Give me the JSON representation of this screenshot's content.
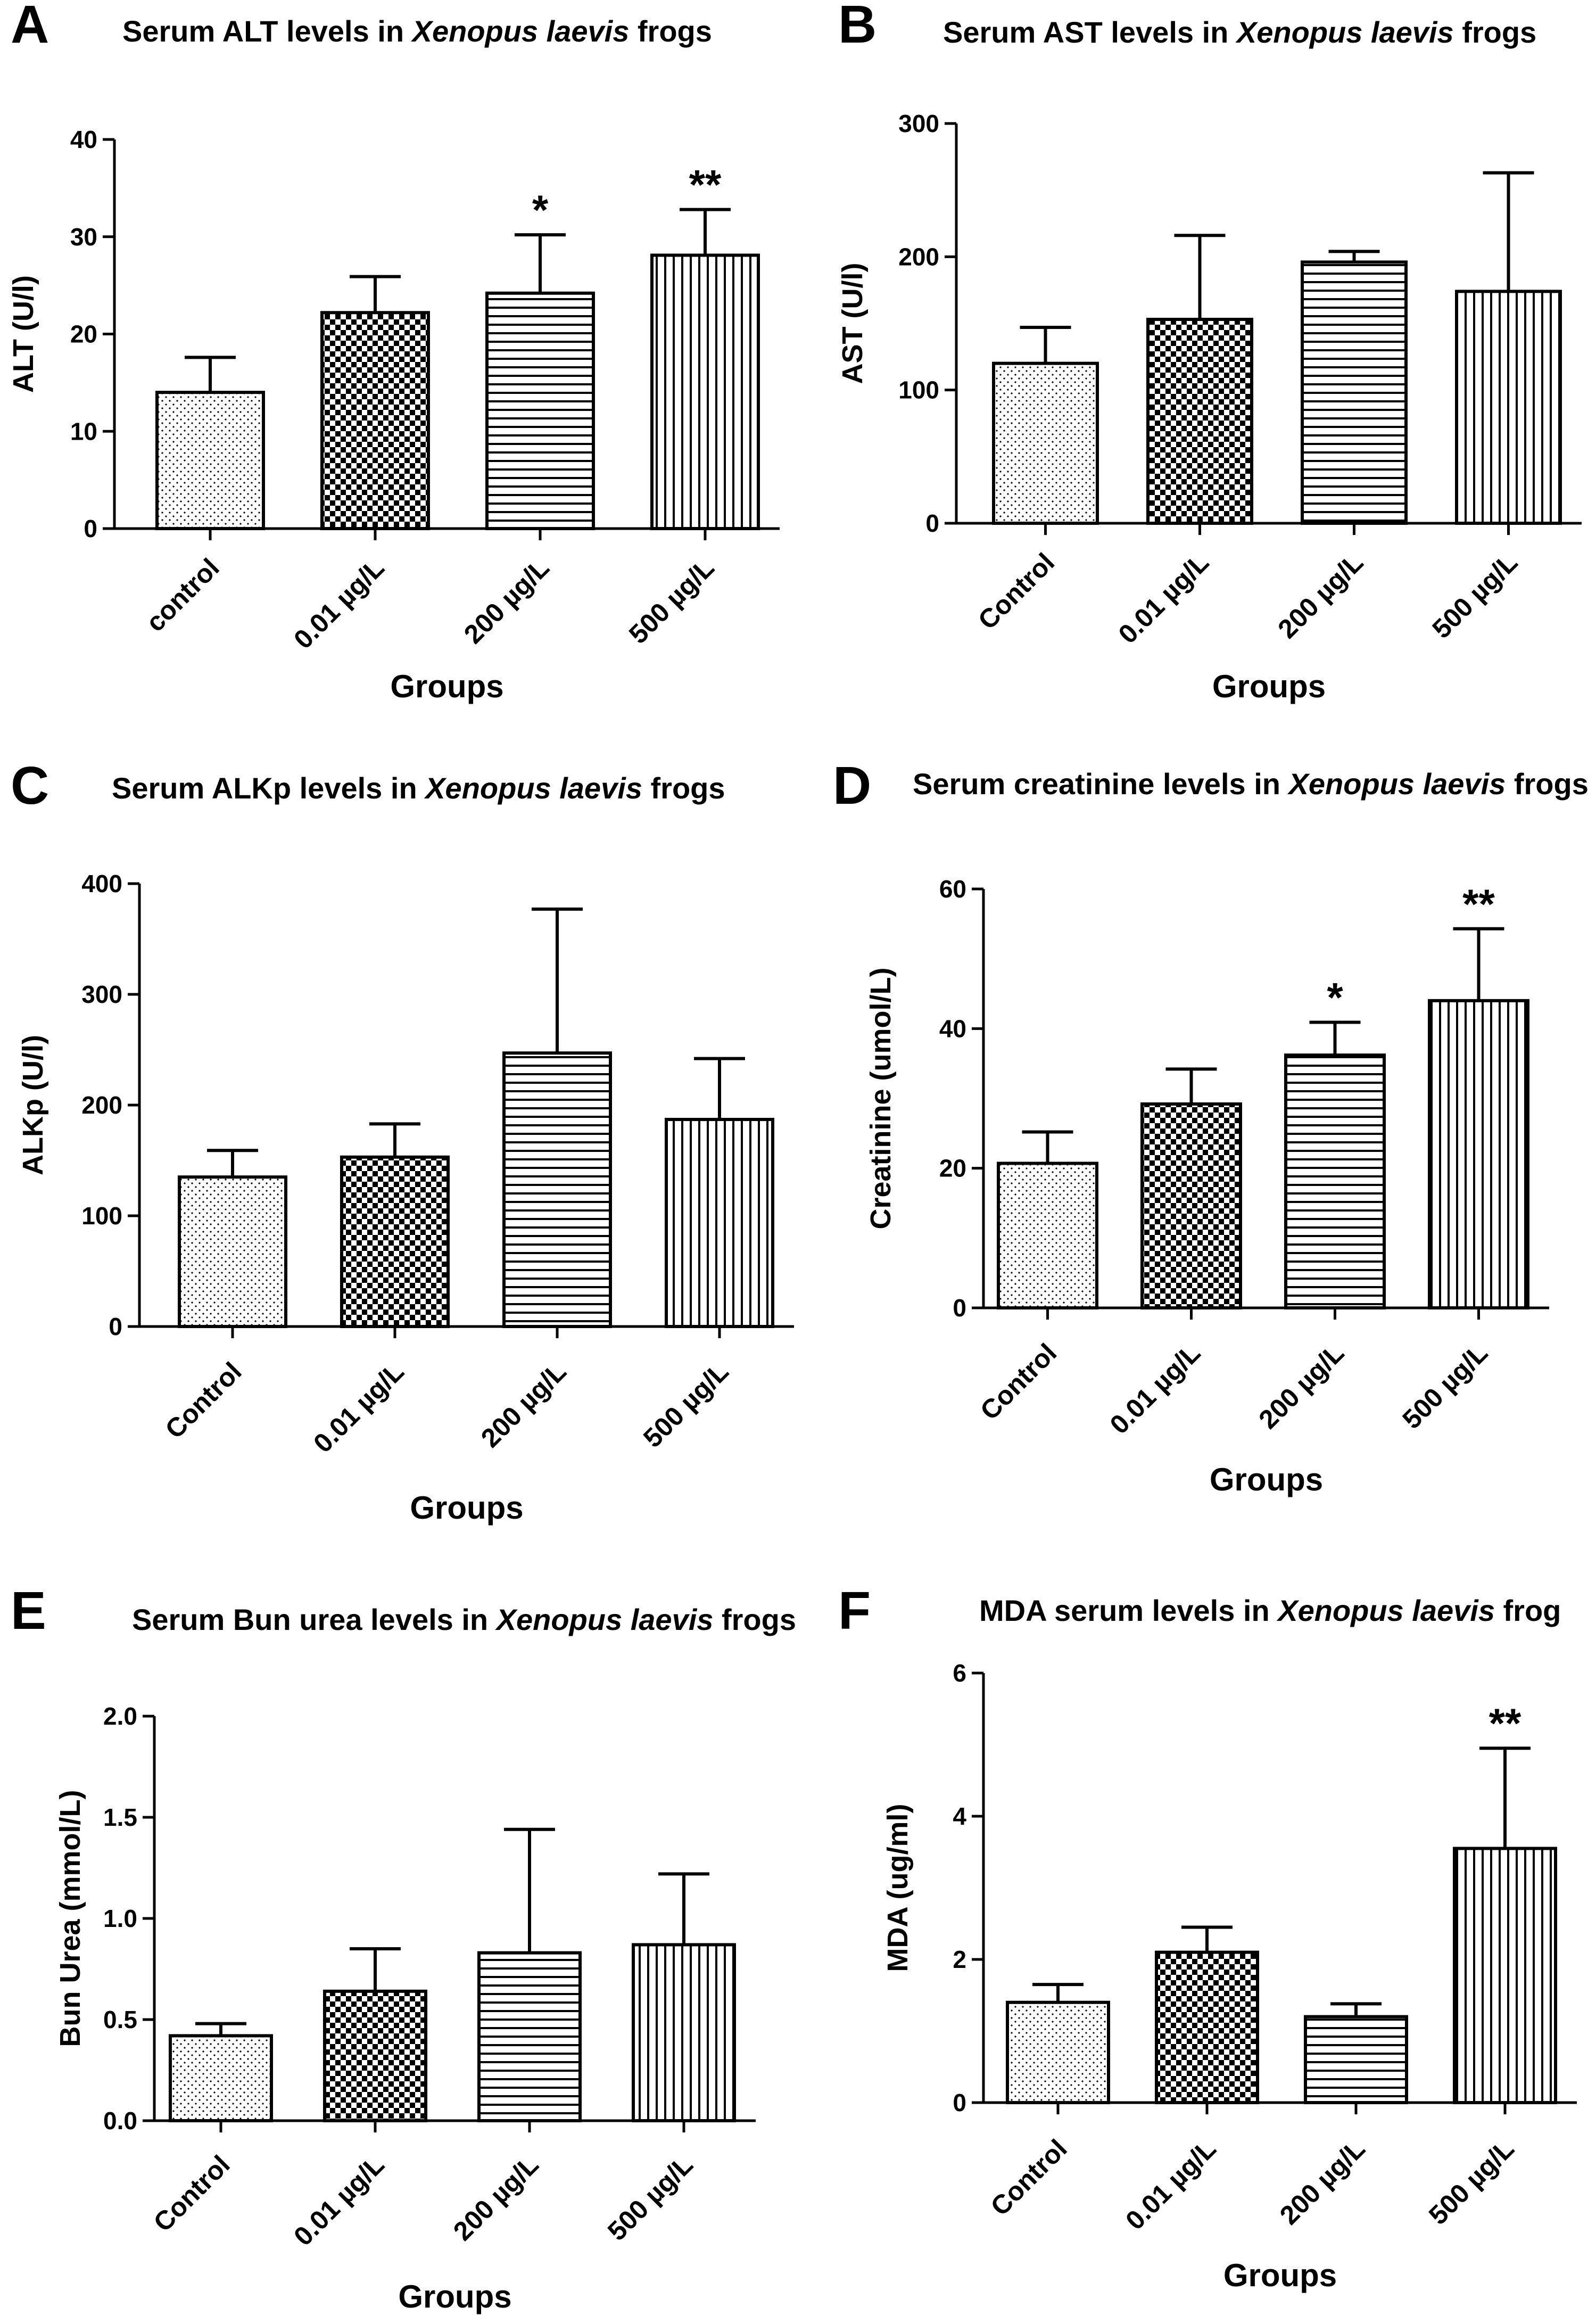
{
  "chart_data": [
    {
      "type": "bar",
      "panel": "A",
      "title_prefix": "Serum ALT levels in ",
      "title_species": "Xenopus laevis",
      "title_suffix": " frogs",
      "ylabel": "ALT (U/l)",
      "xlabel": "Groups",
      "ylim": [
        0,
        40
      ],
      "yticks": [
        0,
        10,
        20,
        30,
        40
      ],
      "ytick_labels": [
        "0",
        "10",
        "20",
        "30",
        "40"
      ],
      "categories": [
        "control",
        "0.01 µg/L",
        "200 µg/L",
        "500 µg/L"
      ],
      "values": [
        14,
        22.2,
        24.2,
        28.1
      ],
      "error_upper": [
        3.6,
        3.7,
        6,
        4.7
      ],
      "significance": [
        "",
        "",
        "*",
        "**"
      ]
    },
    {
      "type": "bar",
      "panel": "B",
      "title_prefix": "Serum AST levels in ",
      "title_species": "Xenopus laevis",
      "title_suffix": " frogs",
      "ylabel": "AST (U/l)",
      "xlabel": "Groups",
      "ylim": [
        0,
        300
      ],
      "yticks": [
        0,
        100,
        200,
        300
      ],
      "ytick_labels": [
        "0",
        "100",
        "200",
        "300"
      ],
      "categories": [
        "Control",
        "0.01 µg/L",
        "200 µg/L",
        "500 µg/L"
      ],
      "values": [
        120,
        153,
        196,
        174
      ],
      "error_upper": [
        27,
        63,
        8,
        89
      ],
      "significance": [
        "",
        "",
        "",
        ""
      ]
    },
    {
      "type": "bar",
      "panel": "C",
      "title_prefix": "Serum ALKp levels in  ",
      "title_species": "Xenopus laevis",
      "title_suffix": " frogs",
      "ylabel": "ALKp (U/l)",
      "xlabel": "Groups",
      "ylim": [
        0,
        400
      ],
      "yticks": [
        0,
        100,
        200,
        300,
        400
      ],
      "ytick_labels": [
        "0",
        "100",
        "200",
        "300",
        "400"
      ],
      "categories": [
        "Control",
        "0.01 µg/L",
        "200 µg/L",
        "500 µg/L"
      ],
      "values": [
        135,
        153,
        247,
        187
      ],
      "error_upper": [
        24,
        30,
        130,
        55
      ],
      "significance": [
        "",
        "",
        "",
        ""
      ]
    },
    {
      "type": "bar",
      "panel": "D",
      "title_prefix": "Serum creatinine levels in ",
      "title_species": "Xenopus laevis",
      "title_suffix": " frogs",
      "ylabel": "Creatinine (umol/L)",
      "xlabel": "Groups",
      "ylim": [
        0,
        60
      ],
      "yticks": [
        0,
        20,
        40,
        60
      ],
      "ytick_labels": [
        "0",
        "20",
        "40",
        "60"
      ],
      "categories": [
        "Control",
        "0.01 µg/L",
        "200 µg/L",
        "500 µg/L"
      ],
      "values": [
        20.7,
        29.2,
        36.2,
        44
      ],
      "error_upper": [
        4.5,
        5,
        4.7,
        10.3
      ],
      "significance": [
        "",
        "",
        "*",
        "**"
      ]
    },
    {
      "type": "bar",
      "panel": "E",
      "title_prefix": "Serum Bun urea levels in ",
      "title_species": "Xenopus laevis",
      "title_suffix": " frogs",
      "ylabel": "Bun Urea (mmol/L)",
      "xlabel": "Groups",
      "ylim": [
        0,
        2
      ],
      "yticks": [
        0,
        0.5,
        1,
        1.5,
        2
      ],
      "ytick_labels": [
        "0.0",
        "0.5",
        "1.0",
        "1.5",
        "2.0"
      ],
      "categories": [
        "Control",
        "0.01 µg/L",
        "200 µg/L",
        "500 µg/L"
      ],
      "values": [
        0.42,
        0.64,
        0.83,
        0.87
      ],
      "error_upper": [
        0.06,
        0.21,
        0.61,
        0.35
      ],
      "significance": [
        "",
        "",
        "",
        ""
      ]
    },
    {
      "type": "bar",
      "panel": "F",
      "title_prefix": "MDA serum levels in ",
      "title_species": "Xenopus laevis",
      "title_suffix": " frog",
      "ylabel": "MDA (ug/ml)",
      "xlabel": "Groups",
      "ylim": [
        0,
        6
      ],
      "yticks": [
        0,
        2,
        4,
        6
      ],
      "ytick_labels": [
        "0",
        "2",
        "4",
        "6"
      ],
      "categories": [
        "Control",
        "0.01 µg/L",
        "200 µg/L",
        "500 µg/L"
      ],
      "values": [
        1.4,
        2.1,
        1.2,
        3.55
      ],
      "error_upper": [
        0.25,
        0.35,
        0.18,
        1.4
      ],
      "significance": [
        "",
        "",
        "",
        "**"
      ]
    }
  ]
}
